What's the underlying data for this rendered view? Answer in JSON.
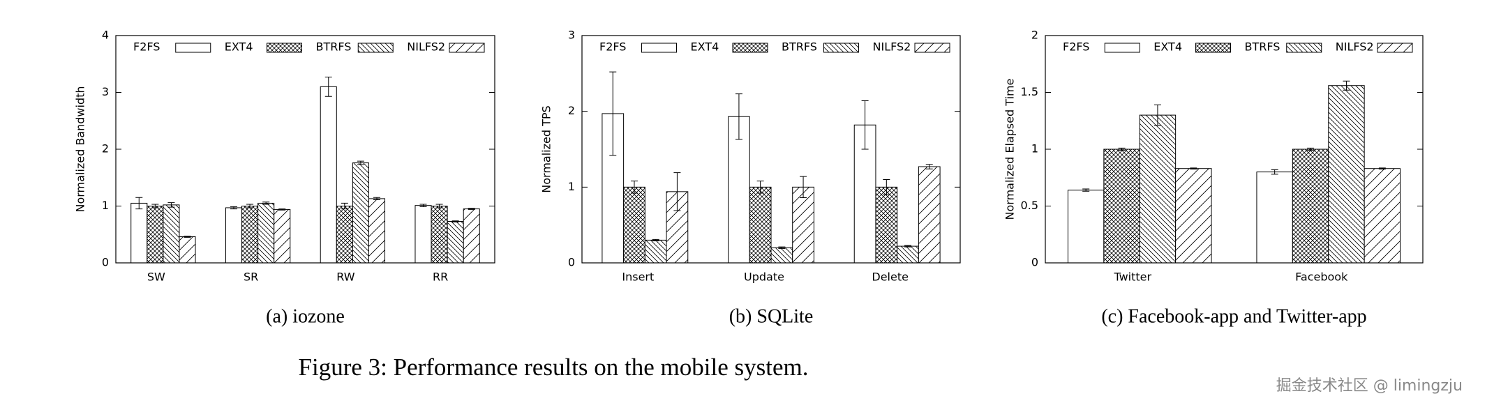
{
  "chart_data": [
    {
      "type": "bar",
      "caption": "(a) iozone",
      "ylabel": "Normalized Bandwidth",
      "categories": [
        "SW",
        "SR",
        "RW",
        "RR"
      ],
      "ylim": [
        0,
        4
      ],
      "yticks": [
        0,
        1,
        2,
        3,
        4
      ],
      "series": [
        {
          "name": "F2FS",
          "color": "#000000",
          "hatch": "none",
          "values": [
            1.05,
            0.97,
            3.1,
            1.01
          ],
          "errors": [
            0.1,
            0.02,
            0.17,
            0.02
          ]
        },
        {
          "name": "EXT4",
          "color": "#000000",
          "hatch": "cross",
          "values": [
            1.0,
            1.0,
            1.0,
            1.0
          ],
          "errors": [
            0.03,
            0.03,
            0.05,
            0.03
          ]
        },
        {
          "name": "BTRFS",
          "color": "#000000",
          "hatch": "back",
          "values": [
            1.02,
            1.05,
            1.76,
            0.73
          ],
          "errors": [
            0.04,
            0.02,
            0.03,
            0.01
          ]
        },
        {
          "name": "NILFS2",
          "color": "#000000",
          "hatch": "fwd",
          "values": [
            0.46,
            0.94,
            1.13,
            0.95
          ],
          "errors": [
            0.01,
            0.01,
            0.02,
            0.01
          ]
        }
      ]
    },
    {
      "type": "bar",
      "caption": "(b) SQLite",
      "ylabel": "Normalized TPS",
      "categories": [
        "Insert",
        "Update",
        "Delete"
      ],
      "ylim": [
        0,
        3
      ],
      "yticks": [
        0,
        1,
        2,
        3
      ],
      "series": [
        {
          "name": "F2FS",
          "color": "#000000",
          "hatch": "none",
          "values": [
            1.97,
            1.93,
            1.82
          ],
          "errors": [
            0.55,
            0.3,
            0.32
          ]
        },
        {
          "name": "EXT4",
          "color": "#000000",
          "hatch": "cross",
          "values": [
            1.0,
            1.0,
            1.0
          ],
          "errors": [
            0.08,
            0.08,
            0.1
          ]
        },
        {
          "name": "BTRFS",
          "color": "#000000",
          "hatch": "back",
          "values": [
            0.3,
            0.2,
            0.22
          ],
          "errors": [
            0.01,
            0.01,
            0.01
          ]
        },
        {
          "name": "NILFS2",
          "color": "#000000",
          "hatch": "fwd",
          "values": [
            0.94,
            1.0,
            1.27
          ],
          "errors": [
            0.25,
            0.14,
            0.03
          ]
        }
      ]
    },
    {
      "type": "bar",
      "caption": "(c) Facebook-app and Twitter-app",
      "ylabel": "Normalized Elapsed Time",
      "categories": [
        "Twitter",
        "Facebook"
      ],
      "ylim": [
        0,
        2
      ],
      "yticks": [
        0,
        0.5,
        1,
        1.5,
        2
      ],
      "series": [
        {
          "name": "F2FS",
          "color": "#000000",
          "hatch": "none",
          "values": [
            0.64,
            0.8
          ],
          "errors": [
            0.01,
            0.02
          ]
        },
        {
          "name": "EXT4",
          "color": "#000000",
          "hatch": "cross",
          "values": [
            1.0,
            1.0
          ],
          "errors": [
            0.01,
            0.01
          ]
        },
        {
          "name": "BTRFS",
          "color": "#000000",
          "hatch": "back",
          "values": [
            1.3,
            1.56
          ],
          "errors": [
            0.09,
            0.04
          ]
        },
        {
          "name": "NILFS2",
          "color": "#000000",
          "hatch": "fwd",
          "values": [
            0.83,
            0.83
          ],
          "errors": [
            0.005,
            0.005
          ]
        }
      ]
    }
  ],
  "figure_caption": "Figure 3: Performance results on the mobile system.",
  "watermark": "掘金技术社区 @ limingzju"
}
